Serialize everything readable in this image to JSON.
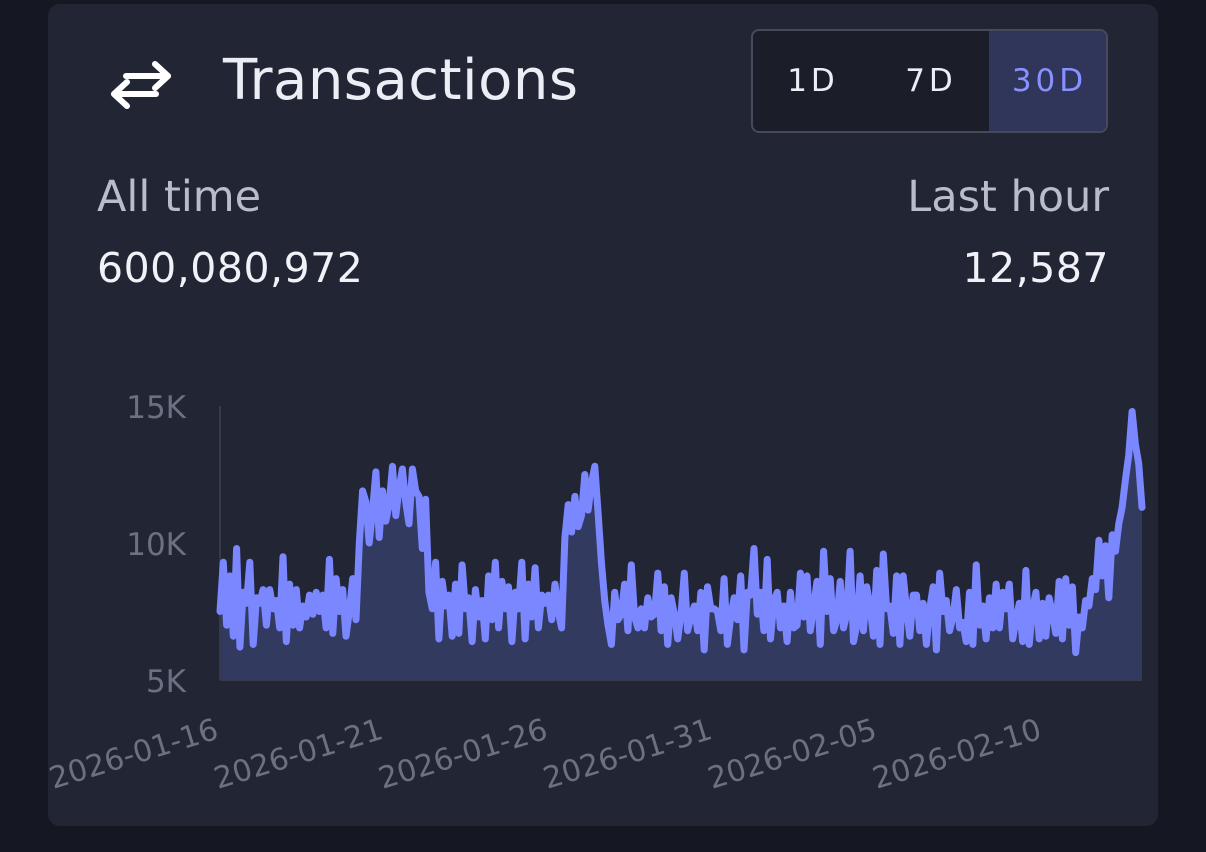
{
  "widget": {
    "title": "Transactions",
    "icon": "swap-arrows-icon",
    "ranges": [
      "1D",
      "7D",
      "30D"
    ],
    "selected_range": "30D"
  },
  "stats": {
    "all_time_label": "All time",
    "all_time_value": "600,080,972",
    "last_hour_label": "Last hour",
    "last_hour_value": "12,587"
  },
  "colors": {
    "line": "#7b87ff",
    "area": "#323a60",
    "accent": "#8891ff"
  },
  "chart_data": {
    "type": "area",
    "x_start": "2026-01-16",
    "x_end": "2026-02-13",
    "x_ticks": [
      "2026-01-16",
      "2026-01-21",
      "2026-01-26",
      "2026-01-31",
      "2026-02-05",
      "2026-02-10"
    ],
    "y_ticks": [
      "5K",
      "10K",
      "15K"
    ],
    "y_tick_values": [
      5000,
      10000,
      15000
    ],
    "ylim": [
      5000,
      15000
    ],
    "grid": false,
    "series": [
      {
        "values": [
          7500,
          9300,
          7000,
          8800,
          6600,
          9800,
          6200,
          8200,
          7800,
          9300,
          6300,
          8000,
          7800,
          8300,
          7000,
          8300,
          7600,
          7900,
          6900,
          9500,
          6400,
          8500,
          7000,
          8300,
          6900,
          7700,
          7300,
          8100,
          7400,
          8200,
          7500,
          8100,
          6900,
          9400,
          6700,
          8700,
          7500,
          8300,
          6600,
          7500,
          8700,
          7200,
          10000,
          11900,
          11500,
          10000,
          11200,
          12600,
          10200,
          11900,
          10800,
          11400,
          12800,
          11000,
          12000,
          12700,
          11500,
          10700,
          12700,
          11900,
          11700,
          9800,
          11600,
          8200,
          7600,
          9300,
          6500,
          8600,
          7700,
          8100,
          6600,
          8500,
          6700,
          9200,
          7600,
          8000,
          6400,
          8300,
          7300,
          7900,
          6500,
          8800,
          7200,
          9300,
          6900,
          8600,
          7600,
          8400,
          6400,
          8200,
          7600,
          9300,
          6500,
          8500,
          7300,
          9100,
          6900,
          8100,
          7800,
          8100,
          7200,
          8500,
          7500,
          6900,
          10200,
          11400,
          10400,
          11700,
          10600,
          11000,
          12500,
          11200,
          12200,
          12800,
          11100,
          9300,
          7900,
          7000,
          6300,
          8200,
          7200,
          7400,
          8500,
          6800,
          9200,
          7300,
          6900,
          7600,
          6900,
          8000,
          7300,
          7400,
          8900,
          6800,
          8400,
          6300,
          8000,
          7400,
          6500,
          7400,
          8900,
          6800,
          7300,
          7700,
          6800,
          8200,
          6100,
          8400,
          7600,
          7600,
          7500,
          6800,
          8700,
          6300,
          7300,
          8000,
          7200,
          8800,
          6100,
          8200,
          8100,
          9800,
          7400,
          8200,
          6800,
          9400,
          6500,
          7900,
          8200,
          6900,
          7700,
          6400,
          8200,
          6900,
          7000,
          8900,
          7300,
          8800,
          6800,
          7700,
          8600,
          6300,
          9700,
          7500,
          8700,
          6800,
          7200,
          8600,
          6900,
          7400,
          9700,
          6400,
          7000,
          8800,
          6800,
          8400,
          7700,
          6600,
          9000,
          6300,
          9600,
          7600,
          7700,
          6700,
          8800,
          6300,
          8800,
          7600,
          6600,
          8100,
          8100,
          6800,
          7800,
          6300,
          7600,
          8400,
          6100,
          8900,
          7500,
          7900,
          6800,
          7300,
          8300,
          6900,
          7100,
          6400,
          8200,
          6300,
          9200,
          7000,
          7700,
          6500,
          8000,
          6900,
          8500,
          6900,
          8200,
          7600,
          8500,
          6500,
          7200,
          7800,
          6400,
          9000,
          6300,
          7600,
          8200,
          6500,
          7800,
          6600,
          8000,
          7400,
          6700,
          8600,
          6500,
          8700,
          7000,
          8400,
          6000,
          7300,
          6900,
          7900,
          7700,
          8700,
          8300,
          10100,
          8800,
          9900,
          8000,
          10300,
          9700,
          10700,
          11300,
          12300,
          13200,
          14800,
          13600,
          12900,
          11300
        ]
      }
    ]
  }
}
